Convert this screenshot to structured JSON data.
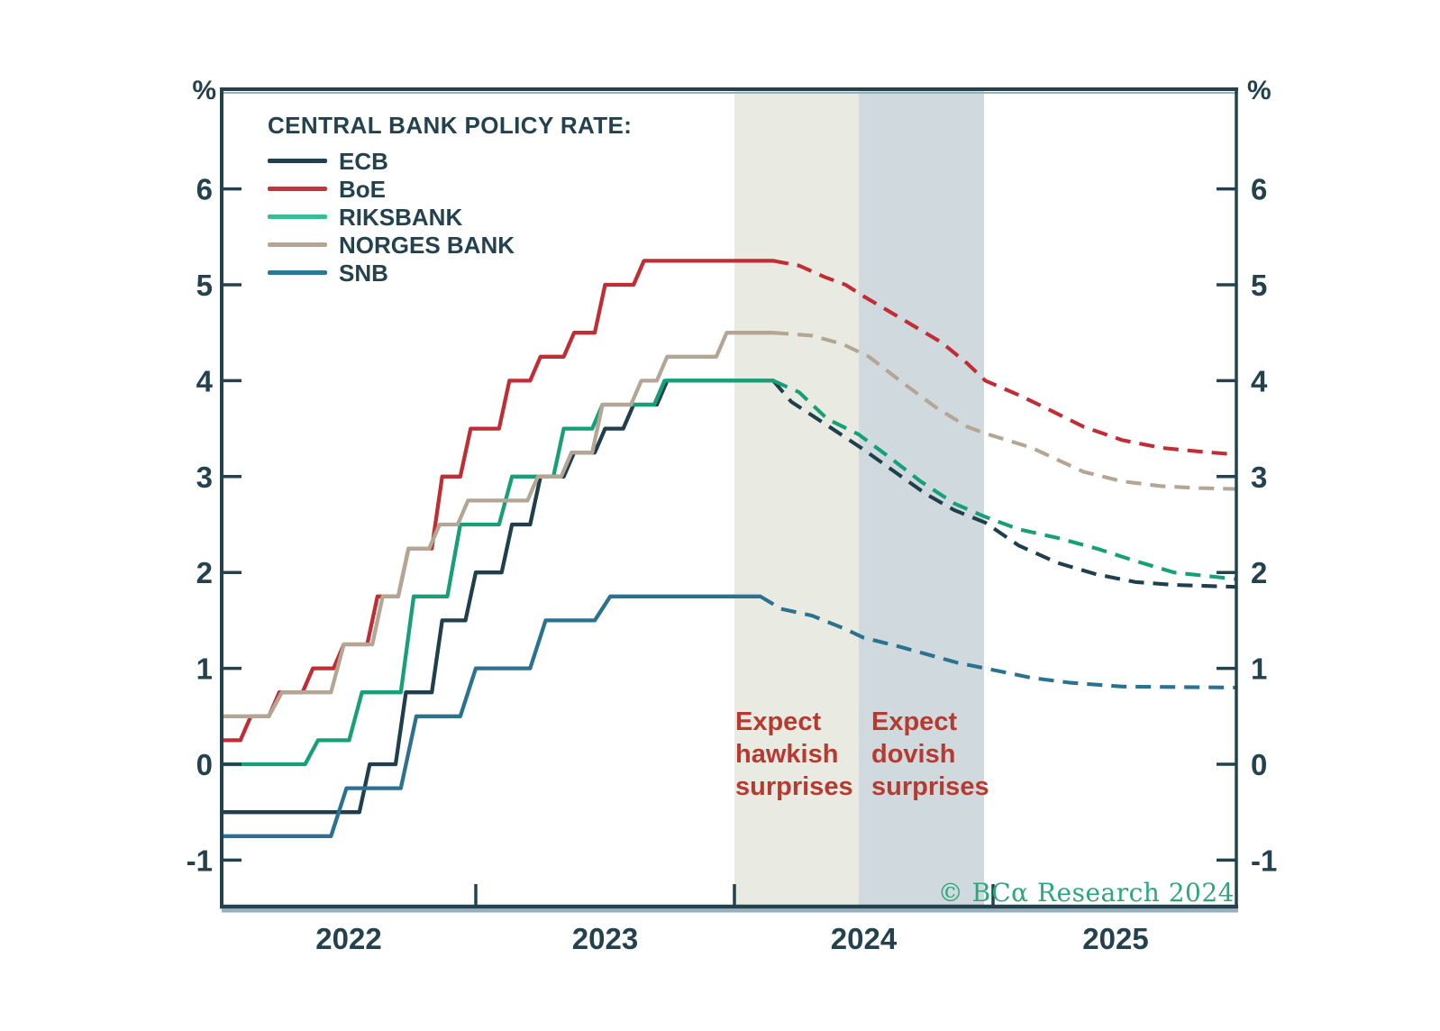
{
  "legend": {
    "title": "CENTRAL BANK POLICY RATE:",
    "items": [
      {
        "label": "ECB"
      },
      {
        "label": "BoE"
      },
      {
        "label": "RIKSBANK"
      },
      {
        "label": "NORGES BANK"
      },
      {
        "label": "SNB"
      }
    ]
  },
  "axes": {
    "unit_left": "%",
    "unit_right": "%",
    "y_ticks": [
      {
        "value": 6,
        "label": "6"
      },
      {
        "value": 5,
        "label": "5"
      },
      {
        "value": 4,
        "label": "4"
      },
      {
        "value": 3,
        "label": "3"
      },
      {
        "value": 2,
        "label": "2"
      },
      {
        "value": 1,
        "label": "1"
      },
      {
        "value": 0,
        "label": "0"
      },
      {
        "value": -1,
        "label": "-1"
      }
    ],
    "x_ticks_years": [
      2023,
      2024,
      2025
    ],
    "x_labels": [
      {
        "year": 2022,
        "label": "2022"
      },
      {
        "year": 2023,
        "label": "2023"
      },
      {
        "year": 2024,
        "label": "2024"
      },
      {
        "year": 2025,
        "label": "2025"
      }
    ],
    "text_color": "#24424e"
  },
  "annotations": {
    "hawkish": "Expect\nhawkish\nsurprises",
    "dovish": "Expect\ndovish\nsurprises",
    "color": "#b73a31"
  },
  "watermark": "© BCα Research 2024",
  "watermark_color": "#2aa87c",
  "chart_data": {
    "type": "line",
    "title": "CENTRAL BANK POLICY RATE",
    "ylabel": "%",
    "x_domain": [
      2022.0,
      2025.95
    ],
    "ylim": [
      -1.5,
      7.1
    ],
    "grid": false,
    "legend_position": "top-left-inside",
    "style_note": "solid = history, dashed = forecast",
    "bands": [
      {
        "name": "expect-hawkish-surprises",
        "from": 2024.0,
        "to": 2024.48,
        "color": "#e9eae2"
      },
      {
        "name": "expect-dovish-surprises",
        "from": 2024.48,
        "to": 2024.965,
        "color": "#cfd9de"
      }
    ],
    "series": [
      {
        "name": "ECB",
        "color": "#1f3f4d",
        "swatch_color": "#22414e",
        "solid": [
          [
            2022.02,
            -0.5
          ],
          [
            2022.55,
            -0.5
          ],
          [
            2022.59,
            0
          ],
          [
            2022.69,
            0
          ],
          [
            2022.73,
            0.75
          ],
          [
            2022.83,
            0.75
          ],
          [
            2022.87,
            1.5
          ],
          [
            2022.96,
            1.5
          ],
          [
            2023.0,
            2.0
          ],
          [
            2023.1,
            2.0
          ],
          [
            2023.14,
            2.5
          ],
          [
            2023.21,
            2.5
          ],
          [
            2023.25,
            3.0
          ],
          [
            2023.34,
            3.0
          ],
          [
            2023.38,
            3.25
          ],
          [
            2023.46,
            3.25
          ],
          [
            2023.5,
            3.5
          ],
          [
            2023.57,
            3.5
          ],
          [
            2023.61,
            3.75
          ],
          [
            2023.7,
            3.75
          ],
          [
            2023.74,
            4.0
          ],
          [
            2024.15,
            4.0
          ]
        ],
        "dashed": [
          [
            2024.15,
            4.0
          ],
          [
            2024.22,
            3.78
          ],
          [
            2024.35,
            3.55
          ],
          [
            2024.49,
            3.3
          ],
          [
            2024.62,
            3.05
          ],
          [
            2024.74,
            2.82
          ],
          [
            2024.85,
            2.65
          ],
          [
            2024.97,
            2.52
          ],
          [
            2025.1,
            2.28
          ],
          [
            2025.25,
            2.1
          ],
          [
            2025.4,
            1.98
          ],
          [
            2025.55,
            1.9
          ],
          [
            2025.7,
            1.87
          ],
          [
            2025.94,
            1.85
          ]
        ]
      },
      {
        "name": "BoE",
        "color": "#c02d35",
        "swatch_color": "#c5343d",
        "solid": [
          [
            2022.02,
            0.25
          ],
          [
            2022.09,
            0.25
          ],
          [
            2022.13,
            0.5
          ],
          [
            2022.2,
            0.5
          ],
          [
            2022.24,
            0.75
          ],
          [
            2022.33,
            0.75
          ],
          [
            2022.37,
            1.0
          ],
          [
            2022.45,
            1.0
          ],
          [
            2022.49,
            1.25
          ],
          [
            2022.58,
            1.25
          ],
          [
            2022.62,
            1.75
          ],
          [
            2022.7,
            1.75
          ],
          [
            2022.74,
            2.25
          ],
          [
            2022.83,
            2.25
          ],
          [
            2022.87,
            3.0
          ],
          [
            2022.94,
            3.0
          ],
          [
            2022.98,
            3.5
          ],
          [
            2023.09,
            3.5
          ],
          [
            2023.13,
            4.0
          ],
          [
            2023.21,
            4.0
          ],
          [
            2023.25,
            4.25
          ],
          [
            2023.34,
            4.25
          ],
          [
            2023.38,
            4.5
          ],
          [
            2023.46,
            4.5
          ],
          [
            2023.5,
            5.0
          ],
          [
            2023.61,
            5.0
          ],
          [
            2023.65,
            5.25
          ],
          [
            2024.15,
            5.25
          ]
        ],
        "dashed": [
          [
            2024.15,
            5.25
          ],
          [
            2024.25,
            5.2
          ],
          [
            2024.35,
            5.08
          ],
          [
            2024.43,
            5.0
          ],
          [
            2024.5,
            4.88
          ],
          [
            2024.6,
            4.72
          ],
          [
            2024.7,
            4.56
          ],
          [
            2024.8,
            4.4
          ],
          [
            2024.9,
            4.18
          ],
          [
            2024.97,
            4.0
          ],
          [
            2025.1,
            3.85
          ],
          [
            2025.2,
            3.72
          ],
          [
            2025.35,
            3.52
          ],
          [
            2025.5,
            3.38
          ],
          [
            2025.65,
            3.3
          ],
          [
            2025.8,
            3.26
          ],
          [
            2025.94,
            3.23
          ]
        ]
      },
      {
        "name": "RIKSBANK",
        "color": "#17a078",
        "swatch_color": "#35bd94",
        "solid": [
          [
            2022.02,
            0.0
          ],
          [
            2022.34,
            0.0
          ],
          [
            2022.39,
            0.25
          ],
          [
            2022.51,
            0.25
          ],
          [
            2022.56,
            0.75
          ],
          [
            2022.71,
            0.75
          ],
          [
            2022.76,
            1.75
          ],
          [
            2022.89,
            1.75
          ],
          [
            2022.94,
            2.5
          ],
          [
            2023.09,
            2.5
          ],
          [
            2023.14,
            3.0
          ],
          [
            2023.3,
            3.0
          ],
          [
            2023.34,
            3.5
          ],
          [
            2023.45,
            3.5
          ],
          [
            2023.49,
            3.75
          ],
          [
            2023.69,
            3.75
          ],
          [
            2023.73,
            4.0
          ],
          [
            2024.15,
            4.0
          ]
        ],
        "dashed": [
          [
            2024.15,
            4.0
          ],
          [
            2024.25,
            3.88
          ],
          [
            2024.36,
            3.6
          ],
          [
            2024.48,
            3.44
          ],
          [
            2024.6,
            3.2
          ],
          [
            2024.72,
            2.95
          ],
          [
            2024.85,
            2.72
          ],
          [
            2024.97,
            2.58
          ],
          [
            2025.1,
            2.45
          ],
          [
            2025.25,
            2.36
          ],
          [
            2025.4,
            2.25
          ],
          [
            2025.55,
            2.12
          ],
          [
            2025.7,
            2.0
          ],
          [
            2025.94,
            1.93
          ]
        ]
      },
      {
        "name": "NORGES BANK",
        "color": "#b4a695",
        "swatch_color": "#b4a695",
        "solid": [
          [
            2022.02,
            0.5
          ],
          [
            2022.2,
            0.5
          ],
          [
            2022.25,
            0.75
          ],
          [
            2022.44,
            0.75
          ],
          [
            2022.49,
            1.25
          ],
          [
            2022.6,
            1.25
          ],
          [
            2022.64,
            1.75
          ],
          [
            2022.7,
            1.75
          ],
          [
            2022.74,
            2.25
          ],
          [
            2022.82,
            2.25
          ],
          [
            2022.86,
            2.5
          ],
          [
            2022.93,
            2.5
          ],
          [
            2022.97,
            2.75
          ],
          [
            2023.2,
            2.75
          ],
          [
            2023.24,
            3.0
          ],
          [
            2023.33,
            3.0
          ],
          [
            2023.37,
            3.25
          ],
          [
            2023.45,
            3.25
          ],
          [
            2023.49,
            3.75
          ],
          [
            2023.6,
            3.75
          ],
          [
            2023.64,
            4.0
          ],
          [
            2023.7,
            4.0
          ],
          [
            2023.74,
            4.25
          ],
          [
            2023.93,
            4.25
          ],
          [
            2023.97,
            4.5
          ],
          [
            2024.15,
            4.5
          ]
        ],
        "dashed": [
          [
            2024.15,
            4.5
          ],
          [
            2024.3,
            4.47
          ],
          [
            2024.42,
            4.38
          ],
          [
            2024.52,
            4.25
          ],
          [
            2024.66,
            3.96
          ],
          [
            2024.78,
            3.72
          ],
          [
            2024.9,
            3.52
          ],
          [
            2024.97,
            3.45
          ],
          [
            2025.15,
            3.3
          ],
          [
            2025.35,
            3.05
          ],
          [
            2025.5,
            2.95
          ],
          [
            2025.65,
            2.9
          ],
          [
            2025.8,
            2.88
          ],
          [
            2025.94,
            2.87
          ]
        ]
      },
      {
        "name": "SNB",
        "color": "#2b7291",
        "swatch_color": "#2b7795",
        "solid": [
          [
            2022.02,
            -0.75
          ],
          [
            2022.44,
            -0.75
          ],
          [
            2022.5,
            -0.25
          ],
          [
            2022.71,
            -0.25
          ],
          [
            2022.77,
            0.5
          ],
          [
            2022.94,
            0.5
          ],
          [
            2023.0,
            1.0
          ],
          [
            2023.21,
            1.0
          ],
          [
            2023.27,
            1.5
          ],
          [
            2023.46,
            1.5
          ],
          [
            2023.52,
            1.75
          ],
          [
            2024.1,
            1.75
          ]
        ],
        "dashed": [
          [
            2024.1,
            1.75
          ],
          [
            2024.18,
            1.62
          ],
          [
            2024.3,
            1.55
          ],
          [
            2024.42,
            1.42
          ],
          [
            2024.5,
            1.32
          ],
          [
            2024.62,
            1.24
          ],
          [
            2024.74,
            1.15
          ],
          [
            2024.86,
            1.06
          ],
          [
            2024.97,
            1.0
          ],
          [
            2025.15,
            0.9
          ],
          [
            2025.3,
            0.85
          ],
          [
            2025.5,
            0.81
          ],
          [
            2025.94,
            0.8
          ]
        ]
      }
    ],
    "border_color": "#24424e",
    "border_shadow_color": "#93b2be"
  }
}
